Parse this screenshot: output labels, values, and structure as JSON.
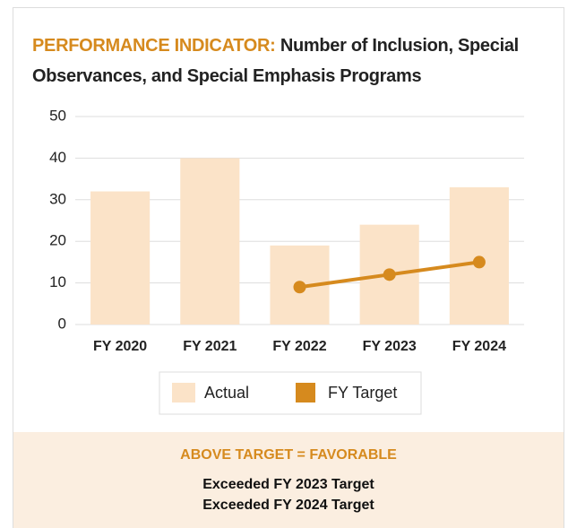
{
  "chart_data": {
    "type": "bar",
    "title_prefix": "PERFORMANCE INDICATOR:",
    "title": "Number of Inclusion, Special Observances, and Special Emphasis Programs",
    "categories": [
      "FY 2020",
      "FY 2021",
      "FY 2022",
      "FY 2023",
      "FY 2024"
    ],
    "series": [
      {
        "name": "Actual",
        "color": "#fbe3c8",
        "type": "bar",
        "values": [
          32,
          40,
          19,
          24,
          33
        ]
      },
      {
        "name": "FY Target",
        "color": "#d68a1e",
        "type": "line",
        "values": [
          null,
          null,
          9,
          12,
          15
        ]
      }
    ],
    "ylim": [
      0,
      50
    ],
    "yticks": [
      0,
      10,
      20,
      30,
      40,
      50
    ],
    "grid": true
  },
  "footer": {
    "heading": "ABOVE TARGET = FAVORABLE",
    "lines": [
      "Exceeded FY 2023 Target",
      "Exceeded FY 2024 Target"
    ]
  }
}
